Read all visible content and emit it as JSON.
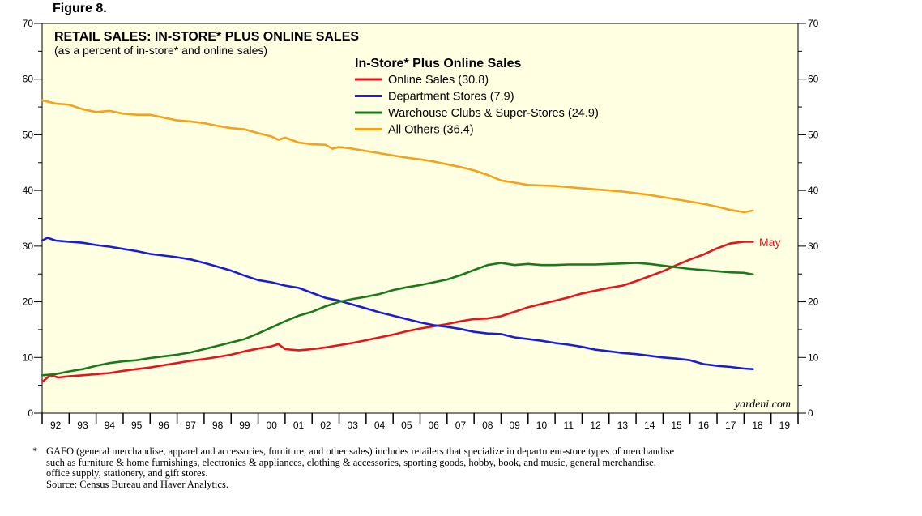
{
  "figure_label": "Figure 8.",
  "footnote": {
    "star": "*",
    "lines": [
      "GAFO (general merchandise, apparel and accessories, furniture, and other sales) includes retailers that specialize in department-store types of merchandise",
      "such as furniture & home furnishings, electronics & appliances, clothing & accessories, sporting goods, hobby, book, and music, general merchandise,",
      "office supply, stationery, and gift stores.",
      "Source: Census Bureau and Haver Analytics."
    ]
  },
  "chart_data": {
    "type": "line",
    "title": "RETAIL SALES: IN-STORE* PLUS ONLINE SALES",
    "subtitle": "(as a percent of in-store* and online sales)",
    "legend_title": "In-Store* Plus Online Sales",
    "legend_position": "top-center",
    "watermark": "yardeni.com",
    "end_annotation": "May",
    "xlabel": "",
    "ylabel": "",
    "xlim": [
      1992,
      2020
    ],
    "ylim": [
      0,
      70
    ],
    "y_ticks": [
      0,
      10,
      20,
      30,
      40,
      50,
      60,
      70
    ],
    "x_tick_labels": [
      "92",
      "93",
      "94",
      "95",
      "96",
      "97",
      "98",
      "99",
      "00",
      "01",
      "02",
      "03",
      "04",
      "05",
      "06",
      "07",
      "08",
      "09",
      "10",
      "11",
      "12",
      "13",
      "14",
      "15",
      "16",
      "17",
      "18",
      "19"
    ],
    "colors": {
      "background": "#FFFFE1",
      "online": "#E8141C",
      "department": "#1C1CD6",
      "warehouse": "#1A7A1A",
      "others": "#F5A21B"
    },
    "series": [
      {
        "name": "Online Sales (30.8)",
        "color": "#E8141C",
        "x": [
          1992.0,
          1992.3,
          1992.6,
          1993.0,
          1993.5,
          1994.0,
          1994.5,
          1995.0,
          1995.5,
          1996.0,
          1996.5,
          1997.0,
          1997.5,
          1998.0,
          1998.5,
          1999.0,
          1999.5,
          2000.0,
          2000.5,
          2000.75,
          2001.0,
          2001.5,
          2002.0,
          2002.5,
          2003.0,
          2003.5,
          2004.0,
          2004.5,
          2005.0,
          2005.5,
          2006.0,
          2006.5,
          2007.0,
          2007.5,
          2008.0,
          2008.5,
          2009.0,
          2009.5,
          2010.0,
          2010.5,
          2011.0,
          2011.5,
          2012.0,
          2012.5,
          2013.0,
          2013.5,
          2014.0,
          2014.5,
          2015.0,
          2015.5,
          2016.0,
          2016.5,
          2017.0,
          2017.5,
          2018.0,
          2018.33
        ],
        "values": [
          5.6,
          6.8,
          6.4,
          6.6,
          6.8,
          7.0,
          7.2,
          7.6,
          7.9,
          8.2,
          8.6,
          9.0,
          9.4,
          9.7,
          10.1,
          10.5,
          11.1,
          11.6,
          12.0,
          12.4,
          11.5,
          11.3,
          11.5,
          11.8,
          12.2,
          12.6,
          13.1,
          13.6,
          14.1,
          14.7,
          15.2,
          15.6,
          16.0,
          16.5,
          16.9,
          17.0,
          17.4,
          18.2,
          19.0,
          19.6,
          20.2,
          20.8,
          21.5,
          22.0,
          22.5,
          22.9,
          23.7,
          24.6,
          25.5,
          26.6,
          27.6,
          28.5,
          29.6,
          30.5,
          30.8,
          30.8
        ]
      },
      {
        "name": "Department Stores (7.9)",
        "color": "#1C1CD6",
        "x": [
          1992.0,
          1992.2,
          1992.5,
          1993.0,
          1993.5,
          1994.0,
          1994.5,
          1995.0,
          1995.5,
          1996.0,
          1996.5,
          1997.0,
          1997.5,
          1998.0,
          1998.5,
          1999.0,
          1999.5,
          2000.0,
          2000.5,
          2001.0,
          2001.5,
          2002.0,
          2002.5,
          2003.0,
          2003.5,
          2004.0,
          2004.5,
          2005.0,
          2005.5,
          2006.0,
          2006.5,
          2007.0,
          2007.5,
          2008.0,
          2008.5,
          2009.0,
          2009.5,
          2010.0,
          2010.5,
          2011.0,
          2011.5,
          2012.0,
          2012.5,
          2013.0,
          2013.5,
          2014.0,
          2014.5,
          2015.0,
          2015.5,
          2016.0,
          2016.5,
          2017.0,
          2017.5,
          2018.0,
          2018.33
        ],
        "values": [
          31.0,
          31.5,
          31.0,
          30.8,
          30.6,
          30.2,
          29.9,
          29.5,
          29.1,
          28.6,
          28.3,
          28.0,
          27.6,
          27.0,
          26.3,
          25.6,
          24.7,
          23.9,
          23.5,
          22.9,
          22.5,
          21.6,
          20.7,
          20.2,
          19.5,
          18.8,
          18.1,
          17.5,
          16.9,
          16.3,
          15.8,
          15.5,
          15.1,
          14.6,
          14.3,
          14.2,
          13.6,
          13.3,
          13.0,
          12.6,
          12.3,
          11.9,
          11.4,
          11.1,
          10.8,
          10.6,
          10.3,
          10.0,
          9.8,
          9.5,
          8.8,
          8.5,
          8.3,
          8.0,
          7.9
        ]
      },
      {
        "name": "Warehouse Clubs & Super-Stores (24.9)",
        "color": "#1A7A1A",
        "x": [
          1992.0,
          1992.5,
          1993.0,
          1993.5,
          1994.0,
          1994.5,
          1995.0,
          1995.5,
          1996.0,
          1996.5,
          1997.0,
          1997.5,
          1998.0,
          1998.5,
          1999.0,
          1999.5,
          2000.0,
          2000.5,
          2001.0,
          2001.5,
          2002.0,
          2002.5,
          2003.0,
          2003.5,
          2004.0,
          2004.5,
          2005.0,
          2005.5,
          2006.0,
          2006.5,
          2007.0,
          2007.5,
          2008.0,
          2008.5,
          2009.0,
          2009.5,
          2010.0,
          2010.5,
          2011.0,
          2011.5,
          2012.0,
          2012.5,
          2013.0,
          2013.5,
          2014.0,
          2014.5,
          2015.0,
          2015.5,
          2016.0,
          2016.5,
          2017.0,
          2017.5,
          2018.0,
          2018.33
        ],
        "values": [
          6.8,
          7.0,
          7.5,
          7.9,
          8.5,
          9.0,
          9.3,
          9.5,
          9.9,
          10.2,
          10.5,
          10.9,
          11.5,
          12.1,
          12.7,
          13.3,
          14.3,
          15.4,
          16.5,
          17.5,
          18.2,
          19.2,
          20.0,
          20.5,
          20.9,
          21.4,
          22.1,
          22.6,
          23.0,
          23.5,
          24.0,
          24.8,
          25.7,
          26.6,
          27.0,
          26.6,
          26.8,
          26.6,
          26.6,
          26.7,
          26.7,
          26.7,
          26.8,
          26.9,
          27.0,
          26.8,
          26.5,
          26.2,
          25.9,
          25.7,
          25.5,
          25.3,
          25.2,
          24.9
        ]
      },
      {
        "name": "All Others (36.4)",
        "color": "#F5A21B",
        "x": [
          1992.0,
          1992.5,
          1993.0,
          1993.5,
          1994.0,
          1994.5,
          1995.0,
          1995.5,
          1996.0,
          1996.5,
          1997.0,
          1997.5,
          1998.0,
          1998.5,
          1999.0,
          1999.5,
          2000.0,
          2000.5,
          2000.75,
          2001.0,
          2001.5,
          2002.0,
          2002.5,
          2002.75,
          2003.0,
          2003.5,
          2004.0,
          2004.5,
          2005.0,
          2005.5,
          2006.0,
          2006.5,
          2007.0,
          2007.5,
          2008.0,
          2008.5,
          2009.0,
          2009.5,
          2010.0,
          2010.5,
          2011.0,
          2011.5,
          2012.0,
          2012.5,
          2013.0,
          2013.5,
          2014.0,
          2014.5,
          2015.0,
          2015.5,
          2016.0,
          2016.5,
          2017.0,
          2017.5,
          2018.0,
          2018.33
        ],
        "values": [
          56.2,
          55.6,
          55.4,
          54.6,
          54.1,
          54.3,
          53.8,
          53.6,
          53.6,
          53.1,
          52.6,
          52.4,
          52.1,
          51.6,
          51.2,
          51.0,
          50.3,
          49.7,
          49.1,
          49.5,
          48.6,
          48.3,
          48.2,
          47.5,
          47.8,
          47.5,
          47.1,
          46.7,
          46.3,
          45.9,
          45.6,
          45.2,
          44.7,
          44.2,
          43.6,
          42.8,
          41.8,
          41.4,
          41.0,
          40.9,
          40.8,
          40.6,
          40.4,
          40.2,
          40.0,
          39.8,
          39.5,
          39.2,
          38.8,
          38.4,
          38.0,
          37.6,
          37.1,
          36.5,
          36.1,
          36.4
        ]
      }
    ]
  }
}
